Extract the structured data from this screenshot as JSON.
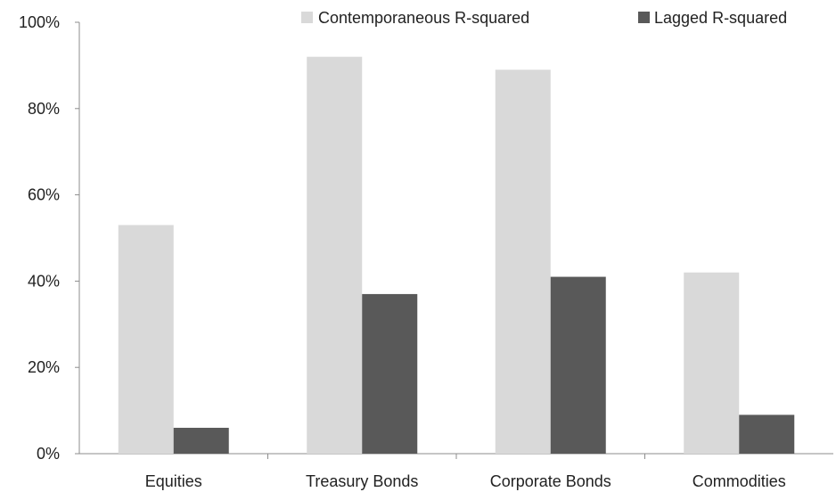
{
  "chart_data": {
    "type": "bar",
    "categories": [
      "Equities",
      "Treasury Bonds",
      "Corporate Bonds",
      "Commodities"
    ],
    "series": [
      {
        "name": "Contemporaneous R-squared",
        "color": "#d9d9d9",
        "values": [
          53,
          92,
          89,
          42
        ]
      },
      {
        "name": "Lagged R-squared",
        "color": "#595959",
        "values": [
          6,
          37,
          41,
          9
        ]
      }
    ],
    "y_unit": "%",
    "ylim": [
      0,
      100
    ],
    "yticks": [
      0,
      20,
      40,
      60,
      80,
      100
    ],
    "ytick_labels": [
      "0%",
      "20%",
      "40%",
      "60%",
      "80%",
      "100%"
    ],
    "grid": false,
    "legend_position": "top-right",
    "title": "",
    "xlabel": "",
    "ylabel": ""
  }
}
